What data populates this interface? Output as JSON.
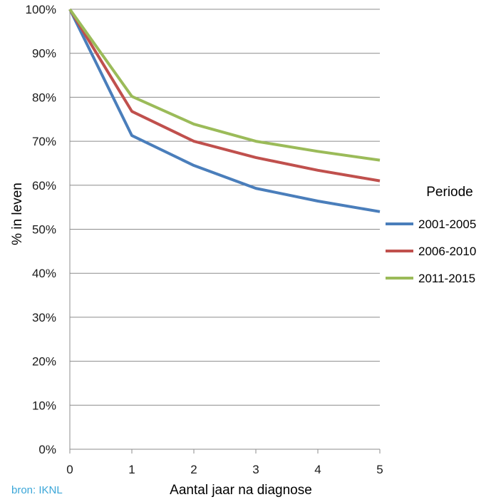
{
  "chart_data": {
    "type": "line",
    "x": [
      0,
      1,
      2,
      3,
      4,
      5
    ],
    "xlabel": "Aantal jaar na diagnose",
    "ylabel": "% in leven",
    "xlim": [
      0,
      5
    ],
    "ylim": [
      0,
      100
    ],
    "y_ticks": [
      "0%",
      "10%",
      "20%",
      "30%",
      "40%",
      "50%",
      "60%",
      "70%",
      "80%",
      "90%",
      "100%"
    ],
    "x_ticks": [
      "0",
      "1",
      "2",
      "3",
      "4",
      "5"
    ],
    "grid": "horizontal",
    "legend_title": "Periode",
    "legend_position": "right",
    "series": [
      {
        "name": "2001-2005",
        "color": "#4a7ebb",
        "values": [
          100,
          71.3,
          64.5,
          59.3,
          56.4,
          54.0
        ]
      },
      {
        "name": "2006-2010",
        "color": "#c0504d",
        "values": [
          100,
          76.8,
          70.0,
          66.3,
          63.4,
          61.0
        ]
      },
      {
        "name": "2011-2015",
        "color": "#9bbb59",
        "values": [
          100,
          80.2,
          73.9,
          70.0,
          67.7,
          65.7
        ]
      }
    ]
  },
  "source_label": "bron: IKNL"
}
